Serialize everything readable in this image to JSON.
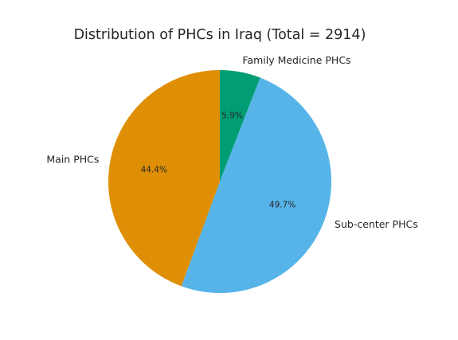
{
  "chart_data": {
    "type": "pie",
    "title": "Distribution of PHCs in Iraq (Total = 2914)",
    "start_angle_deg": 90,
    "direction": "clockwise",
    "slices": [
      {
        "label": "Family Medicine PHCs",
        "value": 5.9,
        "pct_label": "5.9%",
        "color": "#029e73"
      },
      {
        "label": "Sub-center PHCs",
        "value": 49.7,
        "pct_label": "49.7%",
        "color": "#56b4e9"
      },
      {
        "label": "Main PHCs",
        "value": 44.4,
        "pct_label": "44.4%",
        "color": "#de8f05"
      }
    ]
  }
}
